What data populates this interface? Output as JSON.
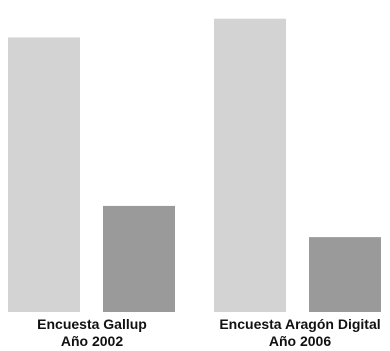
{
  "chart_data": {
    "type": "bar",
    "categories": [
      [
        "Encuesta Gallup",
        "Año 2002"
      ],
      [
        "Encuesta Aragón Digital",
        "Año 2006"
      ]
    ],
    "series": [
      {
        "values": [
          88,
          94
        ]
      },
      {
        "values": [
          34,
          24
        ]
      }
    ],
    "ylim": [
      0,
      100
    ],
    "grid": false,
    "legend": "none",
    "colors": [
      "#d3d3d3",
      "#9a9a9a"
    ]
  }
}
